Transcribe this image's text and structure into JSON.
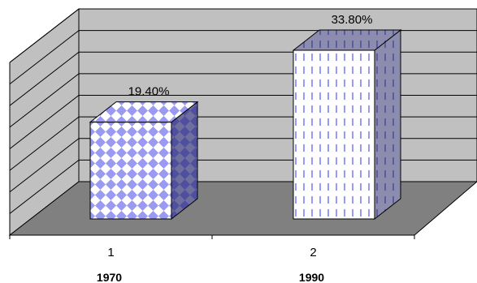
{
  "chart_data": {
    "type": "bar",
    "categories": [
      "1970",
      "1990"
    ],
    "category_numbers": [
      "1",
      "2"
    ],
    "values": [
      19.4,
      33.8
    ],
    "data_labels": [
      "19.40%",
      "33.80%"
    ],
    "title": "",
    "xlabel": "",
    "ylabel": "",
    "ylim": [
      0,
      40
    ],
    "grid": true,
    "legend": "none",
    "colors": {
      "back_wall": "#c0c0c0",
      "floor": "#808080",
      "gridline": "#000000",
      "bar1_fill": "#9999ff",
      "bar2_fill": "#ffffff",
      "bar_pattern": "#8a8ae6"
    }
  }
}
